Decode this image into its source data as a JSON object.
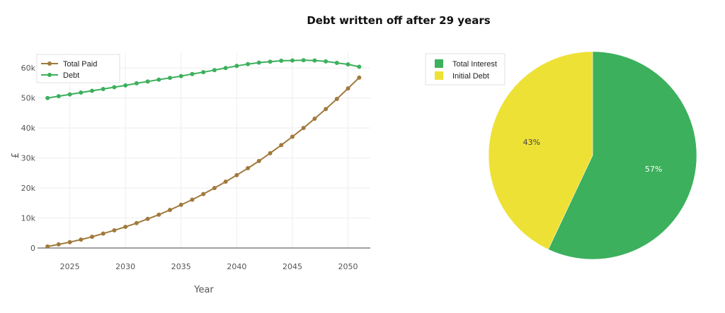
{
  "title": "Debt written off after 29 years",
  "chart_data": [
    {
      "type": "line",
      "xlabel": "Year",
      "ylabel": "£",
      "xlim": [
        2022.1,
        2052.0
      ],
      "ylim": [
        0,
        65000
      ],
      "xticks": [
        2025,
        2030,
        2035,
        2040,
        2045,
        2050
      ],
      "xtick_labels": [
        "2025",
        "2030",
        "2035",
        "2040",
        "2045",
        "2050"
      ],
      "yticks": [
        0,
        10000,
        20000,
        30000,
        40000,
        50000,
        60000
      ],
      "ytick_labels": [
        "0",
        "10k",
        "20k",
        "30k",
        "40k",
        "50k",
        "60k"
      ],
      "grid": true,
      "legend_position": "top-left",
      "x": [
        2023,
        2024,
        2025,
        2026,
        2027,
        2028,
        2029,
        2030,
        2031,
        2032,
        2033,
        2034,
        2035,
        2036,
        2037,
        2038,
        2039,
        2040,
        2041,
        2042,
        2043,
        2044,
        2045,
        2046,
        2047,
        2048,
        2049,
        2050,
        2051
      ],
      "series": [
        {
          "name": "Total Paid",
          "color": "#a07a3c",
          "values": [
            500,
            1200,
            1950,
            2800,
            3750,
            4800,
            5900,
            7050,
            8300,
            9700,
            11100,
            12700,
            14400,
            16100,
            18000,
            20000,
            22100,
            24300,
            26600,
            29000,
            31600,
            34300,
            37100,
            40000,
            43100,
            46300,
            49700,
            53200,
            56800
          ]
        },
        {
          "name": "Debt",
          "color": "#3cb05c",
          "values": [
            50000,
            50600,
            51200,
            51800,
            52400,
            53000,
            53600,
            54200,
            54900,
            55500,
            56100,
            56700,
            57300,
            58000,
            58600,
            59300,
            60000,
            60700,
            61300,
            61800,
            62100,
            62400,
            62500,
            62600,
            62500,
            62200,
            61700,
            61200,
            60400
          ]
        }
      ]
    },
    {
      "type": "pie",
      "slices": [
        {
          "label": "Total Interest",
          "value": 57,
          "text": "57%",
          "color": "#3cb05c",
          "text_color": "#ffffff"
        },
        {
          "label": "Initial Debt",
          "value": 43,
          "text": "43%",
          "color": "#eee135",
          "text_color": "#444444"
        }
      ],
      "legend_position": "top-left"
    }
  ]
}
